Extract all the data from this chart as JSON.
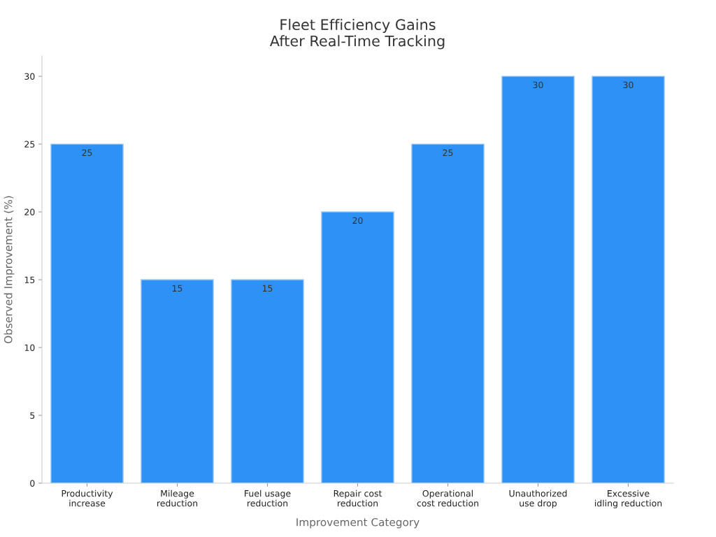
{
  "chart_data": {
    "type": "bar",
    "title": "Fleet Efficiency Gains\nAfter Real-Time Tracking",
    "xlabel": "Improvement Category",
    "ylabel": "Observed Improvement (%)",
    "categories": [
      "Productivity\nincrease",
      "Mileage\nreduction",
      "Fuel usage\nreduction",
      "Repair cost\nreduction",
      "Operational\ncost reduction",
      "Unauthorized\nuse drop",
      "Excessive\nidling reduction"
    ],
    "values": [
      25,
      15,
      15,
      20,
      25,
      30,
      30
    ],
    "color": "#2e91f5",
    "ylim": [
      0,
      31.5
    ],
    "yticks": [
      0,
      5,
      10,
      15,
      20,
      25,
      30
    ],
    "grid": false,
    "legend": false,
    "data_labels": true
  }
}
